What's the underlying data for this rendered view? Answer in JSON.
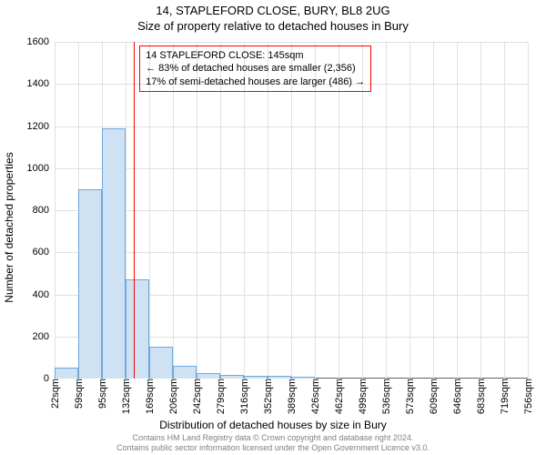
{
  "title_line1": "14, STAPLEFORD CLOSE, BURY, BL8 2UG",
  "title_line2": "Size of property relative to detached houses in Bury",
  "ylabel": "Number of detached properties",
  "xlabel": "Distribution of detached houses by size in Bury",
  "footer_line1": "Contains HM Land Registry data © Crown copyright and database right 2024.",
  "footer_line2": "Contains public sector information licensed under the Open Government Licence v3.0.",
  "chart": {
    "type": "histogram",
    "ylim": [
      0,
      1600
    ],
    "ytick_step": 200,
    "background_color": "#ffffff",
    "grid_color": "#e0e0e0",
    "axis_color": "#666666",
    "bar_fill": "#cfe2f3",
    "bar_border": "#6fa8dc",
    "bar_border_width": 1,
    "marker_color": "#ff0000",
    "marker_x_sqm": 145,
    "tick_fontsize": 11,
    "label_fontsize": 12,
    "title_fontsize": 13,
    "x_bin_start": 22,
    "x_bin_width": 36.7,
    "x_labels": [
      "22sqm",
      "59sqm",
      "95sqm",
      "132sqm",
      "169sqm",
      "206sqm",
      "242sqm",
      "279sqm",
      "316sqm",
      "352sqm",
      "389sqm",
      "426sqm",
      "462sqm",
      "499sqm",
      "536sqm",
      "573sqm",
      "609sqm",
      "646sqm",
      "683sqm",
      "719sqm",
      "756sqm"
    ],
    "values": [
      50,
      900,
      1190,
      470,
      150,
      60,
      25,
      18,
      15,
      12,
      8,
      0,
      0,
      0,
      0,
      0,
      0,
      0,
      0,
      0
    ]
  },
  "annotation": {
    "line1": "14 STAPLEFORD CLOSE: 145sqm",
    "line2": "← 83% of detached houses are smaller (2,356)",
    "line3": "17% of semi-detached houses are larger (486) →",
    "border_color": "#ff0000",
    "fontsize": 11
  }
}
